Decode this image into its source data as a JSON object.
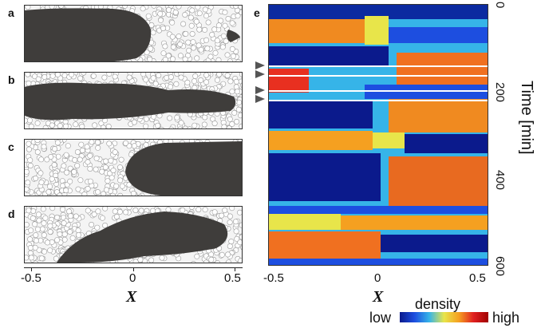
{
  "panels": {
    "a": "a",
    "b": "b",
    "c": "c",
    "d": "d",
    "e": "e"
  },
  "left_axis": {
    "ticks": [
      "-0.5",
      "0",
      "0.5"
    ],
    "title": "X"
  },
  "kymograph": {
    "x_ticks": [
      "-0.5",
      "0",
      "0.5"
    ],
    "x_title": "X",
    "y_ticks": [
      "0",
      "200",
      "400",
      "600"
    ],
    "y_title": "Time [min]"
  },
  "colorbar": {
    "title": "density",
    "low": "low",
    "high": "high",
    "colors": [
      "#0b1a8c",
      "#1d4ee0",
      "#36b4e8",
      "#e8e54a",
      "#f5a020",
      "#e02020",
      "#a00000"
    ]
  }
}
